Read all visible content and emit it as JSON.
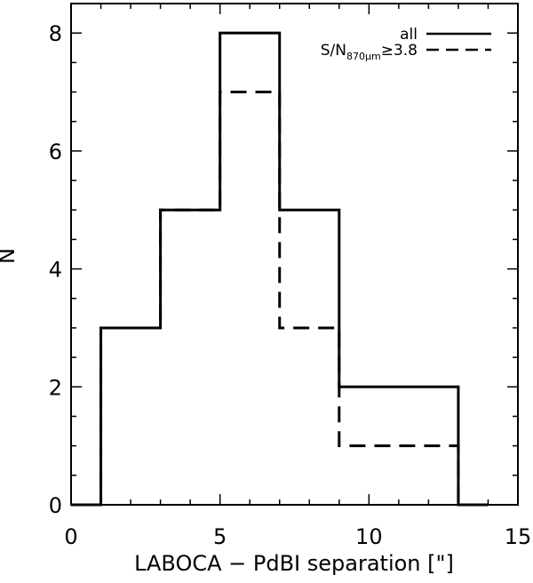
{
  "chart_data": {
    "type": "histogram",
    "xlabel": "LABOCA − PdBI separation [\"]",
    "ylabel": "N",
    "xlim": [
      0,
      15
    ],
    "ylim": [
      0,
      8.5
    ],
    "xticks": [
      0,
      5,
      10,
      15
    ],
    "xtick_labels": [
      "0",
      "5",
      "10",
      "15"
    ],
    "yticks": [
      0,
      2,
      4,
      6,
      8
    ],
    "ytick_labels": [
      "0",
      "2",
      "4",
      "6",
      "8"
    ],
    "x_minor_step": 1,
    "y_minor_step": 0.5,
    "grid": false,
    "legend_position": "top-right",
    "series": [
      {
        "name": "all",
        "style": "solid",
        "bins": [
          {
            "x0": 0,
            "x1": 1,
            "n": 0
          },
          {
            "x0": 1,
            "x1": 3,
            "n": 3
          },
          {
            "x0": 3,
            "x1": 5,
            "n": 5
          },
          {
            "x0": 5,
            "x1": 7,
            "n": 8
          },
          {
            "x0": 7,
            "x1": 9,
            "n": 5
          },
          {
            "x0": 9,
            "x1": 11,
            "n": 2
          },
          {
            "x0": 11,
            "x1": 13,
            "n": 2
          },
          {
            "x0": 13,
            "x1": 14,
            "n": 0
          }
        ]
      },
      {
        "name": "S/N870μm≥3.8",
        "legend_parts": {
          "main": "S/N",
          "sub": "870μm",
          "tail": "≥3.8"
        },
        "style": "dashed",
        "bins": [
          {
            "x0": 0,
            "x1": 1,
            "n": 0
          },
          {
            "x0": 1,
            "x1": 3,
            "n": 3
          },
          {
            "x0": 3,
            "x1": 5,
            "n": 5
          },
          {
            "x0": 5,
            "x1": 7,
            "n": 7
          },
          {
            "x0": 7,
            "x1": 9,
            "n": 3
          },
          {
            "x0": 9,
            "x1": 11,
            "n": 1
          },
          {
            "x0": 11,
            "x1": 13,
            "n": 1
          },
          {
            "x0": 13,
            "x1": 14,
            "n": 0
          }
        ]
      }
    ]
  }
}
